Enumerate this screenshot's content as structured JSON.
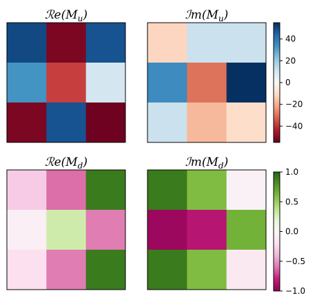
{
  "chart_data": [
    {
      "type": "heatmap",
      "title": "ℛe(M_u)",
      "title_main": "ℛe(M",
      "title_sub": "u",
      "title_close": ")",
      "colormap": "RdBu",
      "vmin": -55,
      "vmax": 55,
      "values": [
        [
          50,
          -52,
          48
        ],
        [
          33,
          -38,
          10
        ],
        [
          -52,
          48,
          -54
        ]
      ]
    },
    {
      "type": "heatmap",
      "title": "ℐm(M_u)",
      "title_main": "ℐm(M",
      "title_sub": "u",
      "title_close": ")",
      "colormap": "RdBu",
      "vmin": -55,
      "vmax": 55,
      "values": [
        [
          -12,
          12,
          12
        ],
        [
          35,
          -30,
          55
        ],
        [
          12,
          -18,
          -10
        ]
      ],
      "colorbar": {
        "ticks": [
          -40,
          -20,
          0,
          20,
          40
        ],
        "tick_labels": [
          "−40",
          "−20",
          "0",
          "20",
          "40"
        ]
      }
    },
    {
      "type": "heatmap",
      "title": "ℛe(M_d)",
      "title_main": "ℛe(M",
      "title_sub": "d",
      "title_close": ")",
      "colormap": "PiYG",
      "vmin": -1,
      "vmax": 1,
      "values": [
        [
          -0.3,
          -0.62,
          0.9
        ],
        [
          -0.07,
          0.3,
          -0.58
        ],
        [
          -0.2,
          -0.58,
          0.9
        ]
      ]
    },
    {
      "type": "heatmap",
      "title": "ℐm(M_d)",
      "title_main": "ℐm(M",
      "title_sub": "d",
      "title_close": ")",
      "colormap": "PiYG",
      "vmin": -1,
      "vmax": 1,
      "values": [
        [
          0.9,
          0.6,
          -0.05
        ],
        [
          -0.95,
          -0.85,
          0.65
        ],
        [
          0.9,
          0.6,
          -0.12
        ]
      ],
      "colorbar": {
        "ticks": [
          1.0,
          0.5,
          0.0,
          -0.5,
          -1.0
        ],
        "tick_labels": [
          "1.0",
          "0.5",
          "0.0",
          "−0.5",
          "−1.0"
        ]
      }
    }
  ]
}
